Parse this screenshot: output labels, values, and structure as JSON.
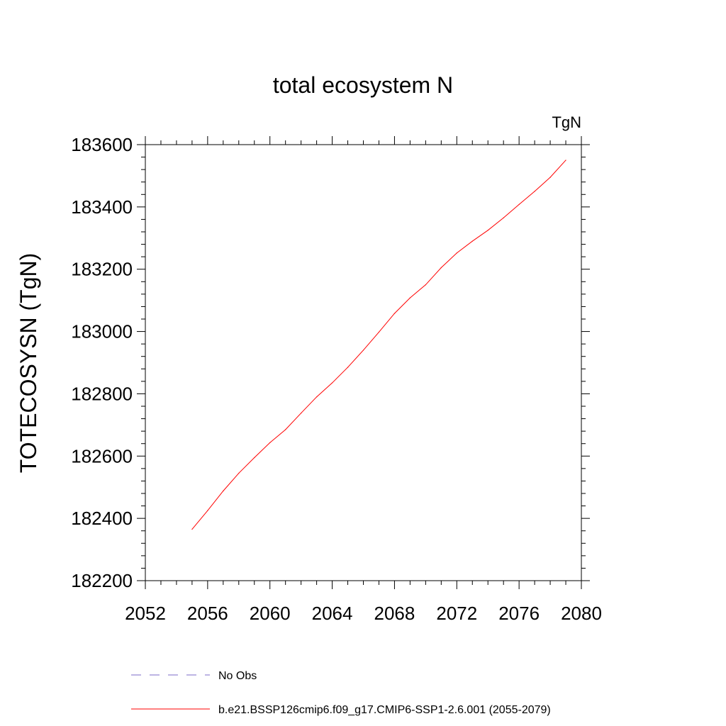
{
  "chart_data": {
    "type": "line",
    "title": "total ecosystem N",
    "units_label": "TgN",
    "xlabel": "",
    "ylabel": "TOTECOSYSN  (TgN)",
    "xlim": [
      2052,
      2080
    ],
    "ylim": [
      182200,
      183600
    ],
    "xticks": [
      2052,
      2056,
      2060,
      2064,
      2068,
      2072,
      2076,
      2080
    ],
    "yticks": [
      182200,
      182400,
      182600,
      182800,
      183000,
      183200,
      183400,
      183600
    ],
    "series": [
      {
        "name": "b.e21.BSSP126cmip6.f09_g17.CMIP6-SSP1-2.6.001 (2055-2079)",
        "color": "#ff0000",
        "style": "solid",
        "x": [
          2055,
          2056,
          2057,
          2058,
          2059,
          2060,
          2061,
          2062,
          2063,
          2064,
          2065,
          2066,
          2067,
          2068,
          2069,
          2070,
          2071,
          2072,
          2073,
          2074,
          2075,
          2076,
          2077,
          2078,
          2079
        ],
        "y": [
          182365,
          182425,
          182488,
          182545,
          182595,
          182643,
          182685,
          182738,
          182790,
          182835,
          182885,
          182940,
          182998,
          183058,
          183108,
          183150,
          183205,
          183252,
          183290,
          183325,
          183365,
          183408,
          183450,
          183495,
          183550
        ]
      },
      {
        "name": "No Obs",
        "color": "#7b68c8",
        "style": "dashed",
        "x": [],
        "y": []
      }
    ],
    "legend": [
      {
        "label": "No Obs",
        "color": "#7b68c8",
        "style": "dashed"
      },
      {
        "label": "b.e21.BSSP126cmip6.f09_g17.CMIP6-SSP1-2.6.001 (2055-2079)",
        "color": "#ff0000",
        "style": "solid"
      }
    ],
    "legend_position": "bottom"
  }
}
